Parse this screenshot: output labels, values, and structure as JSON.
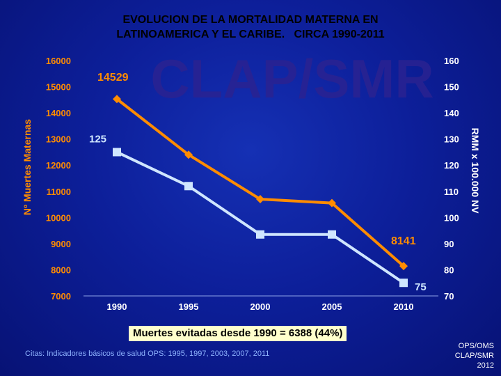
{
  "title": {
    "line1": "EVOLUCION DE LA MORTALIDAD MATERNA EN",
    "line2": "LATINOAMERICA Y EL CARIBE.   CIRCA 1990-2011"
  },
  "watermark": "CLAP/SMR",
  "summary": "Muertes evitadas desde 1990 = 6388 (44%)",
  "footer": {
    "citation": "Citas: Indicadores básicos de salud OPS: 1995, 1997, 2003, 2007, 2011",
    "credit": [
      "OPS/OMS",
      "CLAP/SMR",
      "2012"
    ]
  },
  "colors": {
    "background": "#0d1f9a",
    "deaths_series": "#ff8c00",
    "ratio_series": "#cfe6ff",
    "left_axis": "#ff8c00",
    "right_axis": "#ffffff",
    "year_ticks": "#ffffff",
    "summary_box": "#ffffcc"
  },
  "chart_data": {
    "type": "line",
    "title": "EVOLUCION DE LA MORTALIDAD MATERNA EN LATINOAMERICA Y EL CARIBE. CIRCA 1990-2011",
    "x": [
      1990,
      1995,
      2000,
      2005,
      2010
    ],
    "xticks": [
      "1990",
      "1995",
      "2000",
      "2005",
      "2010"
    ],
    "ylabel_left": "Nº Muertes Maternas",
    "ylabel_right": "RMM x 100.000 NV",
    "ylim_left": [
      7000,
      16000
    ],
    "yticks_left": [
      "16000",
      "15000",
      "14000",
      "13000",
      "12000",
      "11000",
      "10000",
      "9000",
      "8000",
      "7000"
    ],
    "ylim_right": [
      70,
      160
    ],
    "yticks_right": [
      "160",
      "150",
      "140",
      "130",
      "120",
      "110",
      "100",
      "90",
      "80",
      "70"
    ],
    "grid": false,
    "series": [
      {
        "name": "Nº Muertes Maternas",
        "axis": "left",
        "marker": "diamond",
        "values": [
          14529,
          12400,
          10700,
          10550,
          8141
        ]
      },
      {
        "name": "RMM x 100.000 NV",
        "axis": "right",
        "marker": "square",
        "values": [
          125,
          112,
          93.5,
          93.5,
          75
        ]
      }
    ],
    "annotations": [
      "14529",
      "125",
      "8141",
      "75"
    ]
  }
}
